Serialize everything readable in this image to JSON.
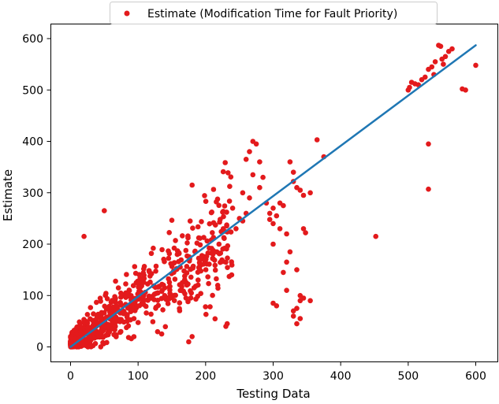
{
  "chart_data": {
    "type": "scatter",
    "xlabel": "Testing Data",
    "ylabel": "Estimate",
    "xlim": [
      -30,
      630
    ],
    "ylim": [
      -20,
      615
    ],
    "xticks": [
      0,
      100,
      200,
      300,
      400,
      500,
      600
    ],
    "yticks": [
      0,
      100,
      200,
      300,
      400,
      500,
      600
    ],
    "grid": false,
    "legend": {
      "placement": "top-center",
      "label": "Estimate (Modification Time for Fault Priority)"
    },
    "colors": {
      "scatter": "#e31a1c",
      "line": "#1f77b4"
    },
    "line": {
      "x": [
        0,
        600
      ],
      "y": [
        0,
        587
      ]
    },
    "cluster": {
      "x_range": [
        0,
        240
      ],
      "approx_points": 700
    },
    "points": [
      [
        500,
        500
      ],
      [
        502,
        505
      ],
      [
        505,
        515
      ],
      [
        510,
        512
      ],
      [
        515,
        510
      ],
      [
        520,
        520
      ],
      [
        525,
        525
      ],
      [
        530,
        540
      ],
      [
        535,
        545
      ],
      [
        538,
        530
      ],
      [
        540,
        555
      ],
      [
        545,
        587
      ],
      [
        548,
        585
      ],
      [
        550,
        560
      ],
      [
        552,
        550
      ],
      [
        555,
        565
      ],
      [
        560,
        575
      ],
      [
        565,
        580
      ],
      [
        580,
        502
      ],
      [
        585,
        500
      ],
      [
        600,
        548
      ],
      [
        530,
        395
      ],
      [
        530,
        307
      ],
      [
        452,
        215
      ],
      [
        270,
        400
      ],
      [
        275,
        395
      ],
      [
        265,
        380
      ],
      [
        260,
        365
      ],
      [
        270,
        335
      ],
      [
        285,
        330
      ],
      [
        280,
        360
      ],
      [
        325,
        360
      ],
      [
        330,
        340
      ],
      [
        330,
        322
      ],
      [
        335,
        310
      ],
      [
        340,
        305
      ],
      [
        365,
        403
      ],
      [
        375,
        370
      ],
      [
        355,
        300
      ],
      [
        345,
        295
      ],
      [
        310,
        280
      ],
      [
        315,
        275
      ],
      [
        290,
        280
      ],
      [
        295,
        260
      ],
      [
        300,
        240
      ],
      [
        310,
        230
      ],
      [
        320,
        220
      ],
      [
        300,
        200
      ],
      [
        325,
        185
      ],
      [
        320,
        165
      ],
      [
        315,
        145
      ],
      [
        320,
        110
      ],
      [
        335,
        150
      ],
      [
        340,
        100
      ],
      [
        345,
        95
      ],
      [
        340,
        90
      ],
      [
        355,
        90
      ],
      [
        335,
        75
      ],
      [
        330,
        70
      ],
      [
        330,
        60
      ],
      [
        340,
        55
      ],
      [
        335,
        45
      ],
      [
        345,
        230
      ],
      [
        348,
        222
      ],
      [
        300,
        85
      ],
      [
        305,
        80
      ],
      [
        230,
        40
      ],
      [
        232,
        45
      ],
      [
        180,
        315
      ],
      [
        50,
        265
      ],
      [
        20,
        215
      ],
      [
        175,
        10
      ],
      [
        180,
        20
      ],
      [
        250,
        250
      ],
      [
        255,
        245
      ],
      [
        245,
        230
      ],
      [
        240,
        270
      ],
      [
        260,
        260
      ],
      [
        280,
        310
      ],
      [
        265,
        290
      ],
      [
        255,
        300
      ],
      [
        300,
        270
      ],
      [
        305,
        255
      ],
      [
        295,
        248
      ]
    ]
  }
}
